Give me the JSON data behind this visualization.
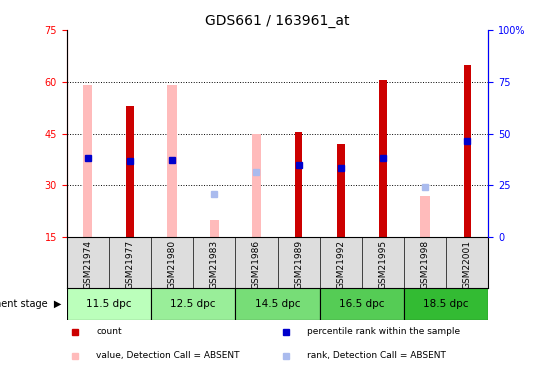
{
  "title": "GDS661 / 163961_at",
  "samples": [
    "GSM21974",
    "GSM21977",
    "GSM21980",
    "GSM21983",
    "GSM21986",
    "GSM21989",
    "GSM21992",
    "GSM21995",
    "GSM21998",
    "GSM22001"
  ],
  "group_labels": [
    "11.5 dpc",
    "12.5 dpc",
    "14.5 dpc",
    "16.5 dpc",
    "18.5 dpc"
  ],
  "group_colors": [
    "#bbffbb",
    "#99ee99",
    "#77dd77",
    "#55cc55",
    "#33bb33"
  ],
  "group_ranges": [
    [
      0,
      2
    ],
    [
      2,
      4
    ],
    [
      4,
      6
    ],
    [
      6,
      8
    ],
    [
      8,
      10
    ]
  ],
  "red_bars": [
    null,
    53.0,
    null,
    null,
    null,
    45.5,
    42.0,
    60.5,
    null,
    65.0
  ],
  "blue_squares_val": [
    38.0,
    37.0,
    37.5,
    null,
    null,
    36.0,
    35.0,
    38.0,
    null,
    43.0
  ],
  "pink_bars": [
    59.0,
    null,
    59.0,
    20.0,
    45.0,
    null,
    null,
    null,
    27.0,
    null
  ],
  "light_blue_squares_val": [
    null,
    null,
    null,
    27.5,
    34.0,
    null,
    null,
    null,
    29.5,
    null
  ],
  "ylim_left": [
    15,
    75
  ],
  "ylim_right": [
    0,
    100
  ],
  "yticks_left": [
    15,
    30,
    45,
    60,
    75
  ],
  "yticks_right": [
    0,
    25,
    50,
    75,
    100
  ],
  "title_fontsize": 10,
  "tick_fontsize": 7,
  "red_color": "#cc0000",
  "blue_color": "#0000cc",
  "pink_color": "#ffbbbb",
  "light_blue_color": "#aabbee",
  "grid_yticks": [
    30,
    45,
    60
  ]
}
